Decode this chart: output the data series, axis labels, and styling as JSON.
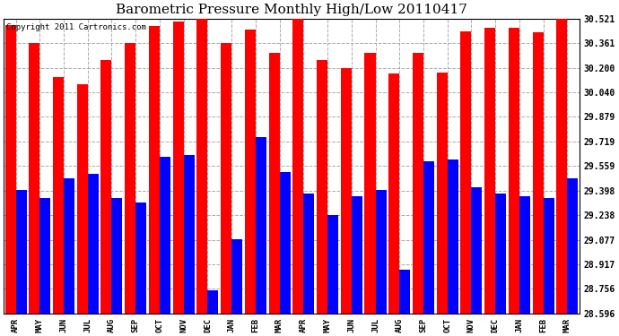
{
  "title": "Barometric Pressure Monthly High/Low 20110417",
  "copyright": "Copyright 2011 Cartronics.com",
  "months": [
    "APR",
    "MAY",
    "JUN",
    "JUL",
    "AUG",
    "SEP",
    "OCT",
    "NOV",
    "DEC",
    "JAN",
    "FEB",
    "MAR",
    "APR",
    "MAY",
    "JUN",
    "JUL",
    "AUG",
    "SEP",
    "OCT",
    "NOV",
    "DEC",
    "JAN",
    "FEB",
    "MAR"
  ],
  "highs": [
    30.48,
    30.36,
    30.14,
    30.09,
    30.25,
    30.36,
    30.47,
    30.5,
    30.52,
    30.36,
    30.45,
    30.3,
    30.52,
    30.25,
    30.2,
    30.3,
    30.16,
    30.3,
    30.17,
    30.44,
    30.46,
    30.46,
    30.43,
    30.52
  ],
  "lows": [
    29.4,
    29.35,
    29.48,
    29.51,
    29.35,
    29.32,
    29.62,
    29.63,
    28.75,
    29.08,
    29.75,
    29.52,
    29.38,
    29.24,
    29.36,
    29.4,
    28.88,
    29.59,
    29.6,
    29.42,
    29.38,
    29.36,
    29.35,
    29.48
  ],
  "yticks": [
    28.596,
    28.756,
    28.917,
    29.077,
    29.238,
    29.398,
    29.559,
    29.719,
    29.879,
    30.04,
    30.2,
    30.361,
    30.521
  ],
  "ymin": 28.596,
  "ymax": 30.521,
  "high_color": "#FF0000",
  "low_color": "#0000FF",
  "bg_color": "#FFFFFF",
  "grid_color": "#AAAAAA",
  "title_fontsize": 11,
  "tick_fontsize": 7,
  "xlabel_fontsize": 6.5,
  "copyright_fontsize": 6.5
}
